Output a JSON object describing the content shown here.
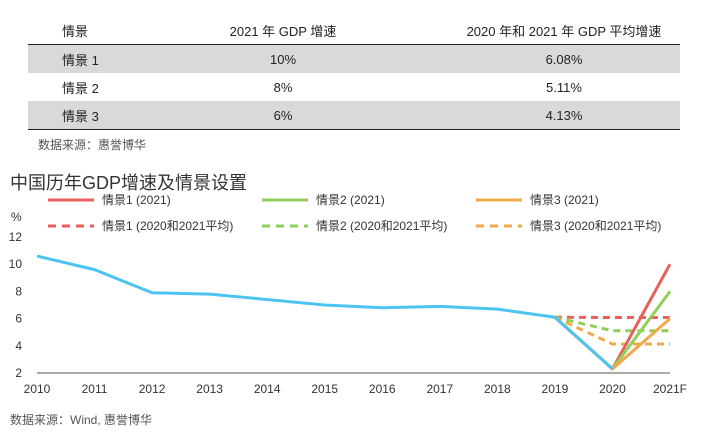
{
  "table": {
    "headers": [
      "情景",
      "2021 年 GDP 增速",
      "2020 年和 2021 年 GDP 平均增速"
    ],
    "rows": [
      [
        "情景 1",
        "10%",
        "6.08%"
      ],
      [
        "情景 2",
        "8%",
        "5.11%"
      ],
      [
        "情景 3",
        "6%",
        "4.13%"
      ]
    ]
  },
  "table_source": "数据来源：惠誉博华",
  "chart_source": "数据来源：Wind, 惠誉博华",
  "chart_data": {
    "type": "line",
    "title": "中国历年GDP增速及情景设置",
    "ylabel": "%",
    "ylim": [
      2,
      12
    ],
    "yticks": [
      2,
      4,
      6,
      8,
      10,
      12
    ],
    "categories": [
      "2010",
      "2011",
      "2012",
      "2013",
      "2014",
      "2015",
      "2016",
      "2017",
      "2018",
      "2019",
      "2020",
      "2021F"
    ],
    "grid": false,
    "legend_position": "top",
    "historical": {
      "color": "#4cc4f2",
      "values": [
        10.6,
        9.6,
        7.9,
        7.8,
        7.4,
        7.0,
        6.8,
        6.9,
        6.7,
        6.1,
        2.3,
        null
      ]
    },
    "series": [
      {
        "name": "情景1 (2021)",
        "color": "#e8605a",
        "dashed": false,
        "x": [
          "2019",
          "2020",
          "2021F"
        ],
        "values": [
          6.1,
          2.3,
          10
        ]
      },
      {
        "name": "情景2 (2021)",
        "color": "#8fd05a",
        "dashed": false,
        "x": [
          "2019",
          "2020",
          "2021F"
        ],
        "values": [
          6.1,
          2.3,
          8
        ]
      },
      {
        "name": "情景3 (2021)",
        "color": "#f2a94a",
        "dashed": false,
        "x": [
          "2019",
          "2020",
          "2021F"
        ],
        "values": [
          6.1,
          2.3,
          6
        ]
      },
      {
        "name": "情景1 (2020和2021平均)",
        "color": "#e8605a",
        "dashed": true,
        "x": [
          "2019",
          "2020",
          "2021F"
        ],
        "values": [
          6.1,
          6.08,
          6.08
        ]
      },
      {
        "name": "情景2 (2020和2021平均)",
        "color": "#8fd05a",
        "dashed": true,
        "x": [
          "2019",
          "2020",
          "2021F"
        ],
        "values": [
          6.1,
          5.11,
          5.11
        ]
      },
      {
        "name": "情景3 (2020和2021平均)",
        "color": "#f2a94a",
        "dashed": true,
        "x": [
          "2019",
          "2020",
          "2021F"
        ],
        "values": [
          6.1,
          4.13,
          4.13
        ]
      }
    ]
  }
}
